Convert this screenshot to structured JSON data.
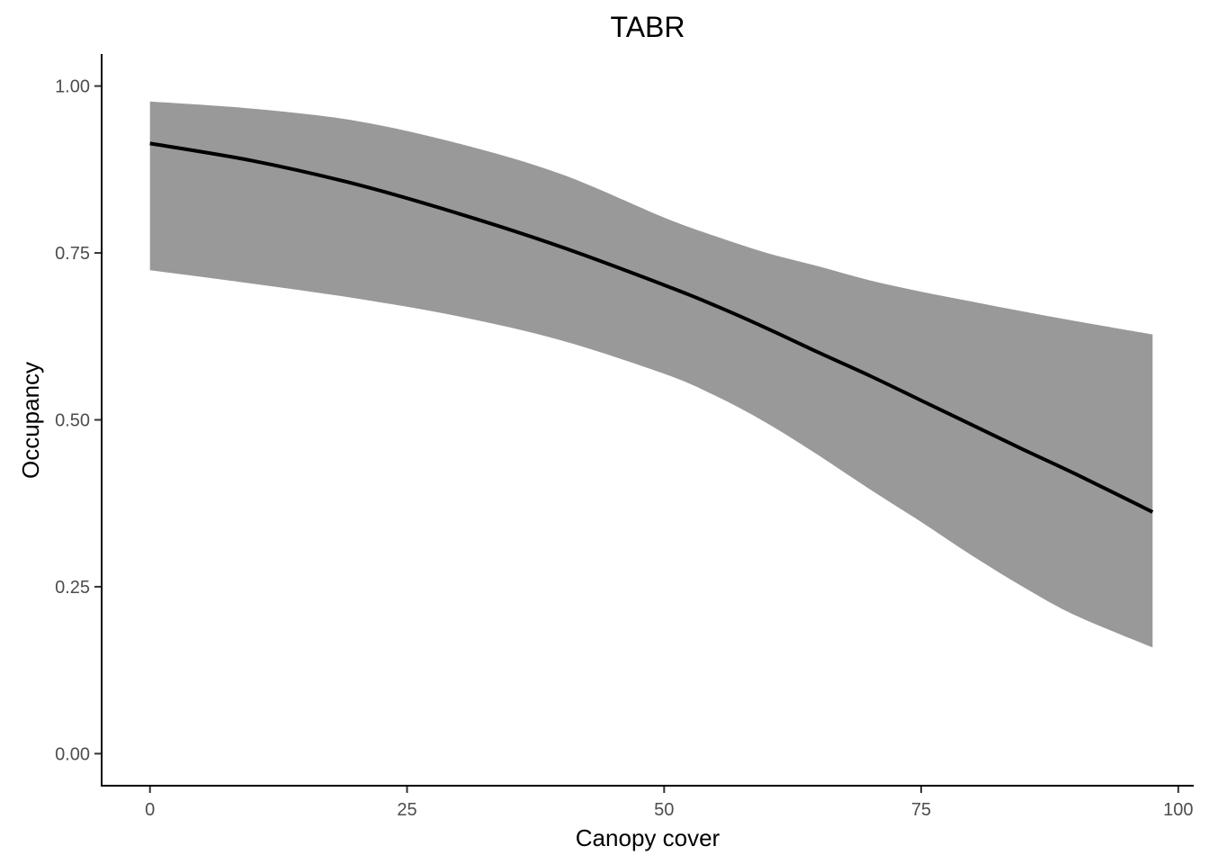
{
  "chart_data": {
    "type": "line",
    "title": "TABR",
    "xlabel": "Canopy cover",
    "ylabel": "Occupancy",
    "xlim": [
      -4.7,
      101.5
    ],
    "ylim": [
      -0.048,
      1.048
    ],
    "x_ticks": [
      0,
      25,
      50,
      75,
      100
    ],
    "x_tick_labels": [
      "0",
      "25",
      "50",
      "75",
      "100"
    ],
    "y_ticks": [
      0,
      0.25,
      0.5,
      0.75,
      1.0
    ],
    "y_tick_labels": [
      "0.00",
      "0.25",
      "0.50",
      "0.75",
      "1.00"
    ],
    "grid": false,
    "colors": {
      "line": "#000000",
      "ribbon": "#999999"
    },
    "series": [
      {
        "x": [
          0,
          10,
          20,
          30,
          40,
          50,
          55,
          60,
          65,
          70,
          75,
          80,
          85,
          90,
          97.5
        ],
        "y": [
          0.914,
          0.888,
          0.853,
          0.809,
          0.759,
          0.702,
          0.671,
          0.637,
          0.601,
          0.566,
          0.529,
          0.492,
          0.455,
          0.419,
          0.362
        ],
        "lower": [
          0.724,
          0.704,
          0.682,
          0.655,
          0.619,
          0.569,
          0.536,
          0.495,
          0.447,
          0.396,
          0.347,
          0.296,
          0.249,
          0.207,
          0.159
        ],
        "upper": [
          0.977,
          0.966,
          0.948,
          0.914,
          0.868,
          0.803,
          0.775,
          0.75,
          0.73,
          0.709,
          0.692,
          0.677,
          0.662,
          0.648,
          0.628
        ]
      }
    ]
  }
}
